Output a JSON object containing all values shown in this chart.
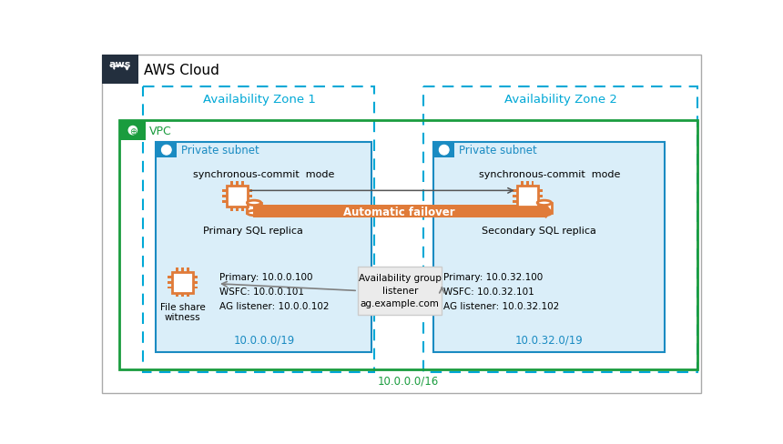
{
  "title": "AWS Cloud",
  "bg_color": "#ffffff",
  "aws_header_bg": "#232F3E",
  "orange_color": "#e07b39",
  "auto_failover_text": "Automatic failover",
  "az_border_color": "#00a8d6",
  "az1_label": "Availability Zone 1",
  "az2_label": "Availability Zone 2",
  "vpc_border_color": "#1a9c3e",
  "vpc_fill_color": "#f5fff5",
  "vpc_label": "VPC",
  "subnet_border_color": "#1a8bc2",
  "subnet_fill_color": "#daeef9",
  "subnet_header_color": "#1a8bc2",
  "subnet1_label": "Private subnet",
  "subnet2_label": "Private subnet",
  "sync_mode": "synchronous-commit  mode",
  "primary_label": "Primary SQL replica",
  "secondary_label": "Secondary SQL replica",
  "fileshare_label": "File share\nwitness",
  "listener_label": "Availability group\nlistener\nag.example.com",
  "primary_ips": "Primary: 10.0.0.100\nWSFC: 10.0.0.101\nAG listener: 10.0.0.102",
  "secondary_ips": "Primary: 10.0.32.100\nWSFC: 10.0.32.101\nAG listener: 10.0.32.102",
  "subnet1_cidr": "10.0.0.0/19",
  "subnet2_cidr": "10.0.32.0/19",
  "vpc_cidr": "10.0.0.0/16",
  "cidr_color": "#1a9c3e",
  "az_text_color": "#00a8d6",
  "subnet_text_color": "#1a8bc2",
  "arrow_color": "#808080",
  "outer_border_color": "#aaaaaa"
}
